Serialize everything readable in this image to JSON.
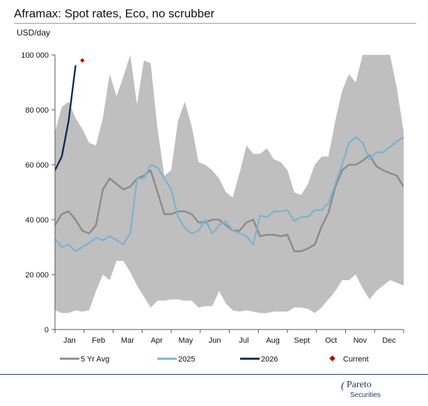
{
  "chart_data": {
    "type": "line",
    "title": "Aframax: Spot rates, Eco, no scrubber",
    "ylabel": "USD/day",
    "ylim": [
      0,
      100000
    ],
    "yticks": [
      0,
      20000,
      40000,
      60000,
      80000,
      100000
    ],
    "ytick_labels": [
      "0",
      "20 000",
      "40 000",
      "60 000",
      "80 000",
      "100 000"
    ],
    "x_axis": "week of year",
    "xlim": [
      1,
      52
    ],
    "month_labels": [
      "Jan",
      "Feb",
      "Mar",
      "Apr",
      "May",
      "Jun",
      "Jul",
      "Aug",
      "Sept",
      "Oct",
      "Nov",
      "Dec"
    ],
    "grid": false,
    "legend_position": "bottom",
    "range_band": {
      "color": "#bfbfbf",
      "high": [
        72000,
        81000,
        83000,
        77000,
        73000,
        68000,
        67000,
        77000,
        93000,
        85000,
        92000,
        100000,
        82000,
        98000,
        97000,
        73000,
        56000,
        58000,
        76000,
        83000,
        74000,
        61000,
        60000,
        58000,
        55000,
        50000,
        48000,
        57000,
        67000,
        64000,
        64000,
        66000,
        62000,
        61000,
        58000,
        50000,
        49000,
        53000,
        60000,
        63000,
        63000,
        76000,
        87000,
        93000,
        90000,
        100000,
        100000,
        100000,
        100000,
        100000,
        88000,
        72000
      ],
      "low": [
        7000,
        6000,
        6000,
        7000,
        6500,
        7000,
        14000,
        20000,
        18000,
        25000,
        25000,
        21000,
        16000,
        12000,
        8000,
        10500,
        10500,
        11000,
        11000,
        10500,
        10500,
        8000,
        8500,
        8500,
        14000,
        9500,
        7000,
        6500,
        7000,
        6500,
        6000,
        6000,
        6500,
        6500,
        6500,
        8000,
        8000,
        7500,
        6000,
        8000,
        11000,
        14000,
        18000,
        18000,
        20000,
        15000,
        11000,
        14000,
        16000,
        18000,
        17000,
        16000
      ]
    },
    "series": [
      {
        "name": "5 Yr Avg",
        "color": "#8c8c8c",
        "values": [
          38000,
          42000,
          43000,
          40000,
          36000,
          35000,
          38000,
          51000,
          55000,
          53000,
          51000,
          52000,
          55000,
          56000,
          58000,
          50000,
          42000,
          42000,
          43000,
          43000,
          42000,
          39000,
          39000,
          40000,
          40000,
          38000,
          36000,
          36000,
          39000,
          40000,
          34000,
          34500,
          34500,
          34000,
          34500,
          28500,
          28500,
          29500,
          31000,
          37500,
          42500,
          52000,
          58000,
          60000,
          60000,
          61500,
          63500,
          59500,
          58000,
          57000,
          56000,
          52000
        ]
      },
      {
        "name": "2025",
        "color": "#7fb2cf",
        "values": [
          33000,
          30000,
          31000,
          28500,
          30000,
          31500,
          33500,
          32500,
          34000,
          32500,
          31000,
          35000,
          55000,
          55000,
          60000,
          59000,
          55000,
          51000,
          41000,
          37000,
          35000,
          36000,
          40000,
          35000,
          38000,
          39500,
          36000,
          35000,
          34000,
          31000,
          41500,
          41000,
          43000,
          43000,
          43500,
          39500,
          41000,
          41000,
          43500,
          43500,
          46000,
          53000,
          60000,
          68000,
          70000,
          68000,
          62000,
          64500,
          64500,
          66500,
          68500,
          70000
        ]
      },
      {
        "name": "2026",
        "color": "#0d2b4e",
        "values": [
          58000,
          63000,
          76000,
          96000
        ]
      }
    ],
    "markers": [
      {
        "name": "Current",
        "color": "#c00000",
        "shape": "diamond",
        "x": 5,
        "y": 98000
      }
    ]
  },
  "legend": {
    "avg": "5 Yr Avg",
    "y2025": "2025",
    "y2026": "2026",
    "current": "Current"
  },
  "logo": {
    "mark": "(",
    "name": "Pareto",
    "sub": "Securities"
  },
  "colors": {
    "band": "#bfbfbf",
    "avg": "#8c8c8c",
    "y2025": "#7fb2cf",
    "y2026": "#0d2b4e",
    "current": "#c00000",
    "brand": "#1f3a5a"
  }
}
